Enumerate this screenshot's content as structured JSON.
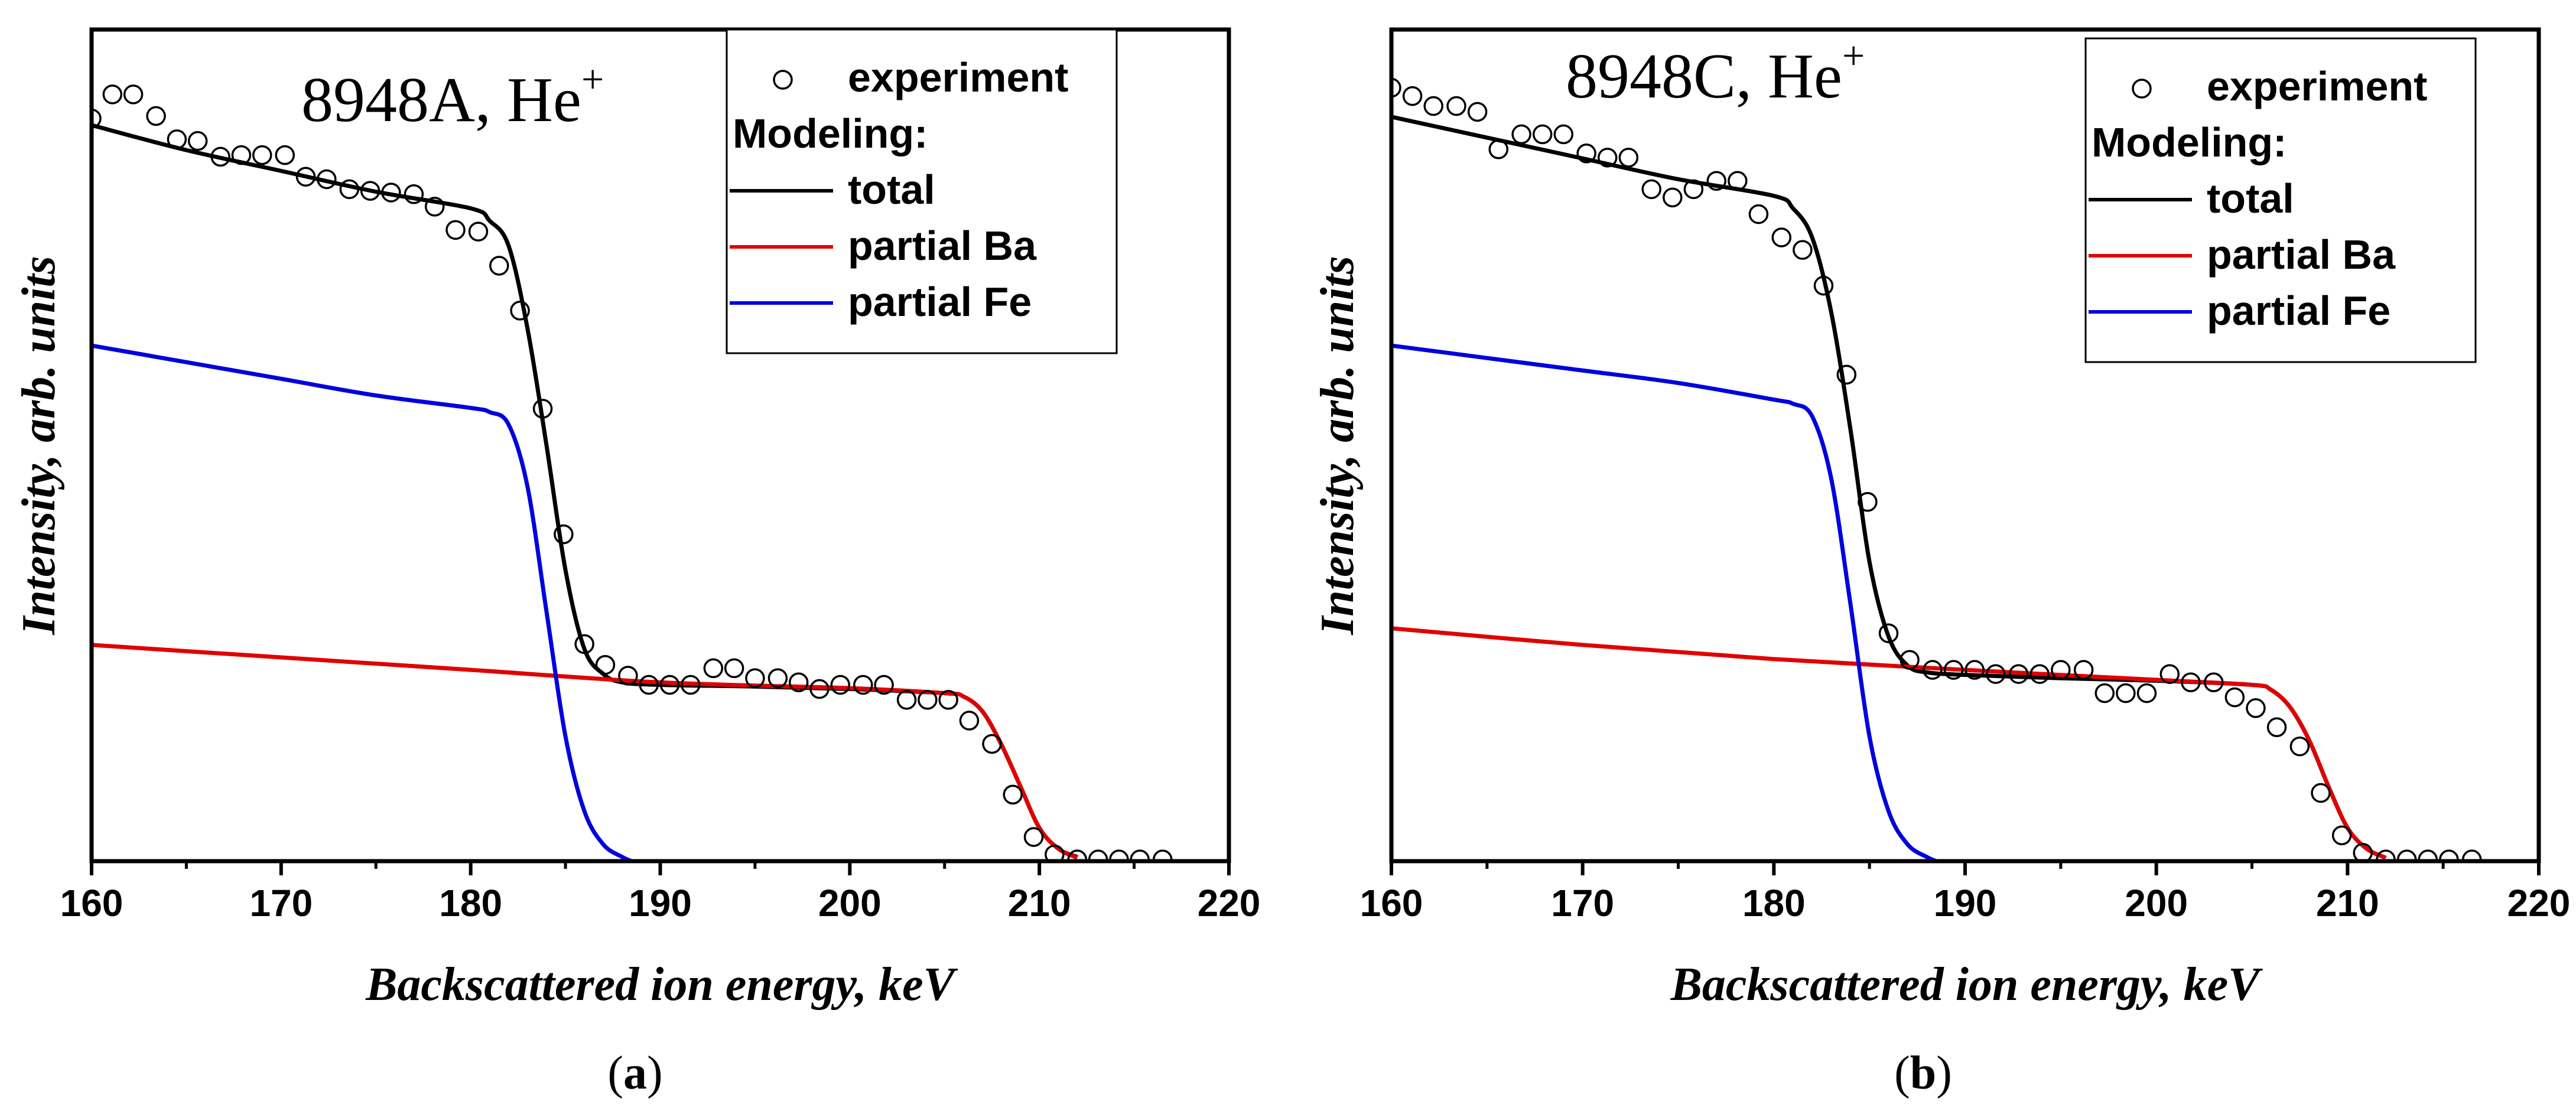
{
  "chart_data": [
    {
      "type": "line",
      "title": "8948A, He",
      "title_sup": "+",
      "caption_letter": "a",
      "xlabel": "Backscattered ion energy, keV",
      "ylabel": "Intensity, arb. units",
      "xlim": [
        160,
        220
      ],
      "ylim": [
        0,
        100
      ],
      "xticks": [
        "160",
        "170",
        "180",
        "190",
        "200",
        "210",
        "220"
      ],
      "xtick_values": [
        160,
        170,
        180,
        190,
        200,
        210,
        220
      ],
      "legend": {
        "position": "top-right",
        "experiment_label": "experiment",
        "modeling_header": "Modeling:",
        "total_label": "total",
        "ba_label": "partial Ba",
        "fe_label": "partial Fe"
      },
      "series": [
        {
          "name": "experiment",
          "kind": "points",
          "x": [
            160.0,
            161.1,
            162.2,
            163.4,
            164.5,
            165.6,
            166.8,
            167.9,
            169.0,
            170.2,
            171.3,
            172.4,
            173.6,
            174.7,
            175.8,
            177.0,
            178.1,
            179.2,
            180.4,
            181.5,
            182.6,
            183.8,
            184.9,
            186.0,
            187.1,
            188.3,
            189.4,
            190.5,
            191.6,
            192.8,
            193.9,
            195.0,
            196.2,
            197.3,
            198.4,
            199.5,
            200.7,
            201.8,
            203.0,
            204.1,
            205.2,
            206.3,
            207.5,
            208.6,
            209.7,
            210.8,
            212.0,
            213.1,
            214.2,
            215.3,
            216.5
          ],
          "y": [
            89.3,
            92.2,
            92.2,
            89.6,
            86.8,
            86.6,
            84.7,
            84.9,
            84.9,
            84.9,
            82.3,
            82.0,
            80.8,
            80.6,
            80.4,
            80.2,
            78.7,
            75.9,
            75.7,
            71.6,
            66.2,
            54.4,
            39.3,
            26.1,
            23.6,
            22.3,
            21.2,
            21.2,
            21.2,
            23.2,
            23.2,
            22.0,
            22.0,
            21.5,
            20.7,
            21.2,
            21.2,
            21.2,
            19.4,
            19.4,
            19.4,
            16.9,
            14.1,
            8.0,
            2.9,
            0.8,
            0.2,
            0.2,
            0.2,
            0.2,
            0.2
          ]
        },
        {
          "name": "total",
          "color": "#000000",
          "x": [
            160,
            165,
            170,
            175,
            180,
            181,
            182,
            183,
            184,
            185,
            186,
            187,
            188,
            190,
            195,
            200,
            205,
            206,
            207,
            208,
            209,
            210,
            211,
            212
          ],
          "y": [
            88.5,
            85.5,
            83.0,
            80.5,
            78.5,
            77.0,
            74.0,
            64.0,
            50.0,
            35.0,
            25.5,
            22.5,
            21.5,
            21.2,
            21.0,
            20.7,
            20.2,
            19.8,
            18.0,
            14.0,
            9.0,
            4.0,
            1.5,
            0.5
          ]
        },
        {
          "name": "partial Ba",
          "color": "#e00000",
          "x": [
            160,
            170,
            180,
            190,
            200,
            205,
            206,
            207,
            208,
            209,
            210,
            211,
            212
          ],
          "y": [
            26.0,
            24.5,
            23.0,
            21.5,
            20.8,
            20.2,
            19.8,
            18.0,
            14.0,
            9.0,
            4.0,
            1.5,
            0.4
          ]
        },
        {
          "name": "partial Fe",
          "color": "#0000dd",
          "x": [
            160,
            165,
            170,
            175,
            180,
            181,
            182,
            183,
            184,
            185,
            186,
            187,
            188,
            188.5
          ],
          "y": [
            62.0,
            60.0,
            58.0,
            56.0,
            54.5,
            54.0,
            52.5,
            45.0,
            30.0,
            15.0,
            6.0,
            2.0,
            0.5,
            0.0
          ]
        }
      ]
    },
    {
      "type": "line",
      "title": "8948C, He",
      "title_sup": "+",
      "caption_letter": "b",
      "xlabel": "Backscattered ion energy, keV",
      "ylabel": "Intensity, arb. units",
      "xlim": [
        160,
        220
      ],
      "ylim": [
        0,
        100
      ],
      "xticks": [
        "160",
        "170",
        "180",
        "190",
        "200",
        "210",
        "220"
      ],
      "xtick_values": [
        160,
        170,
        180,
        190,
        200,
        210,
        220
      ],
      "legend": {
        "position": "top-right",
        "experiment_label": "experiment",
        "modeling_header": "Modeling:",
        "total_label": "total",
        "ba_label": "partial Ba",
        "fe_label": "partial Fe"
      },
      "series": [
        {
          "name": "experiment",
          "kind": "points",
          "x": [
            160.0,
            161.1,
            162.2,
            163.4,
            164.5,
            165.6,
            166.8,
            167.9,
            169.0,
            170.2,
            171.3,
            172.4,
            173.6,
            174.7,
            175.8,
            177.0,
            178.1,
            179.2,
            180.4,
            181.5,
            182.6,
            183.8,
            184.9,
            186.0,
            187.1,
            188.3,
            189.4,
            190.5,
            191.6,
            192.8,
            193.9,
            195.0,
            196.2,
            197.3,
            198.4,
            199.5,
            200.7,
            201.8,
            203.0,
            204.1,
            205.2,
            206.3,
            207.5,
            208.6,
            209.7,
            210.8,
            212.0,
            213.1,
            214.2,
            215.3,
            216.5
          ],
          "y": [
            93.0,
            92.0,
            90.8,
            90.8,
            90.1,
            85.6,
            87.4,
            87.4,
            87.4,
            85.1,
            84.6,
            84.6,
            80.8,
            79.8,
            80.8,
            81.8,
            81.8,
            77.8,
            75.0,
            73.5,
            69.2,
            58.5,
            43.2,
            27.4,
            24.2,
            23.0,
            23.0,
            23.0,
            22.5,
            22.5,
            22.5,
            23.0,
            23.0,
            20.2,
            20.2,
            20.2,
            22.5,
            21.5,
            21.5,
            19.7,
            18.4,
            16.1,
            13.8,
            8.2,
            3.1,
            1.0,
            0.2,
            0.2,
            0.2,
            0.2,
            0.2
          ]
        },
        {
          "name": "total",
          "color": "#000000",
          "x": [
            160,
            165,
            170,
            175,
            180,
            181,
            182,
            183,
            184,
            185,
            186,
            187,
            188,
            190,
            195,
            200,
            205,
            206,
            207,
            208,
            209,
            210,
            211,
            212
          ],
          "y": [
            89.5,
            87.0,
            84.5,
            82.0,
            80.0,
            78.5,
            75.0,
            66.0,
            52.0,
            36.0,
            27.0,
            23.5,
            22.7,
            22.4,
            22.0,
            21.7,
            21.2,
            20.6,
            18.5,
            14.5,
            9.0,
            4.0,
            1.5,
            0.4
          ]
        },
        {
          "name": "partial Ba",
          "color": "#e00000",
          "x": [
            160,
            170,
            180,
            190,
            200,
            205,
            206,
            207,
            208,
            209,
            210,
            211,
            212
          ],
          "y": [
            28.0,
            26.0,
            24.3,
            23.0,
            21.8,
            21.2,
            20.6,
            18.5,
            14.5,
            9.0,
            4.0,
            1.5,
            0.4
          ]
        },
        {
          "name": "partial Fe",
          "color": "#0000dd",
          "x": [
            160,
            165,
            170,
            175,
            180,
            181,
            182,
            183,
            184,
            185,
            186,
            187,
            188,
            188.5
          ],
          "y": [
            62.0,
            60.5,
            59.0,
            57.5,
            55.5,
            55.0,
            53.5,
            46.0,
            31.0,
            15.0,
            6.0,
            2.0,
            0.5,
            0.0
          ]
        }
      ]
    }
  ]
}
